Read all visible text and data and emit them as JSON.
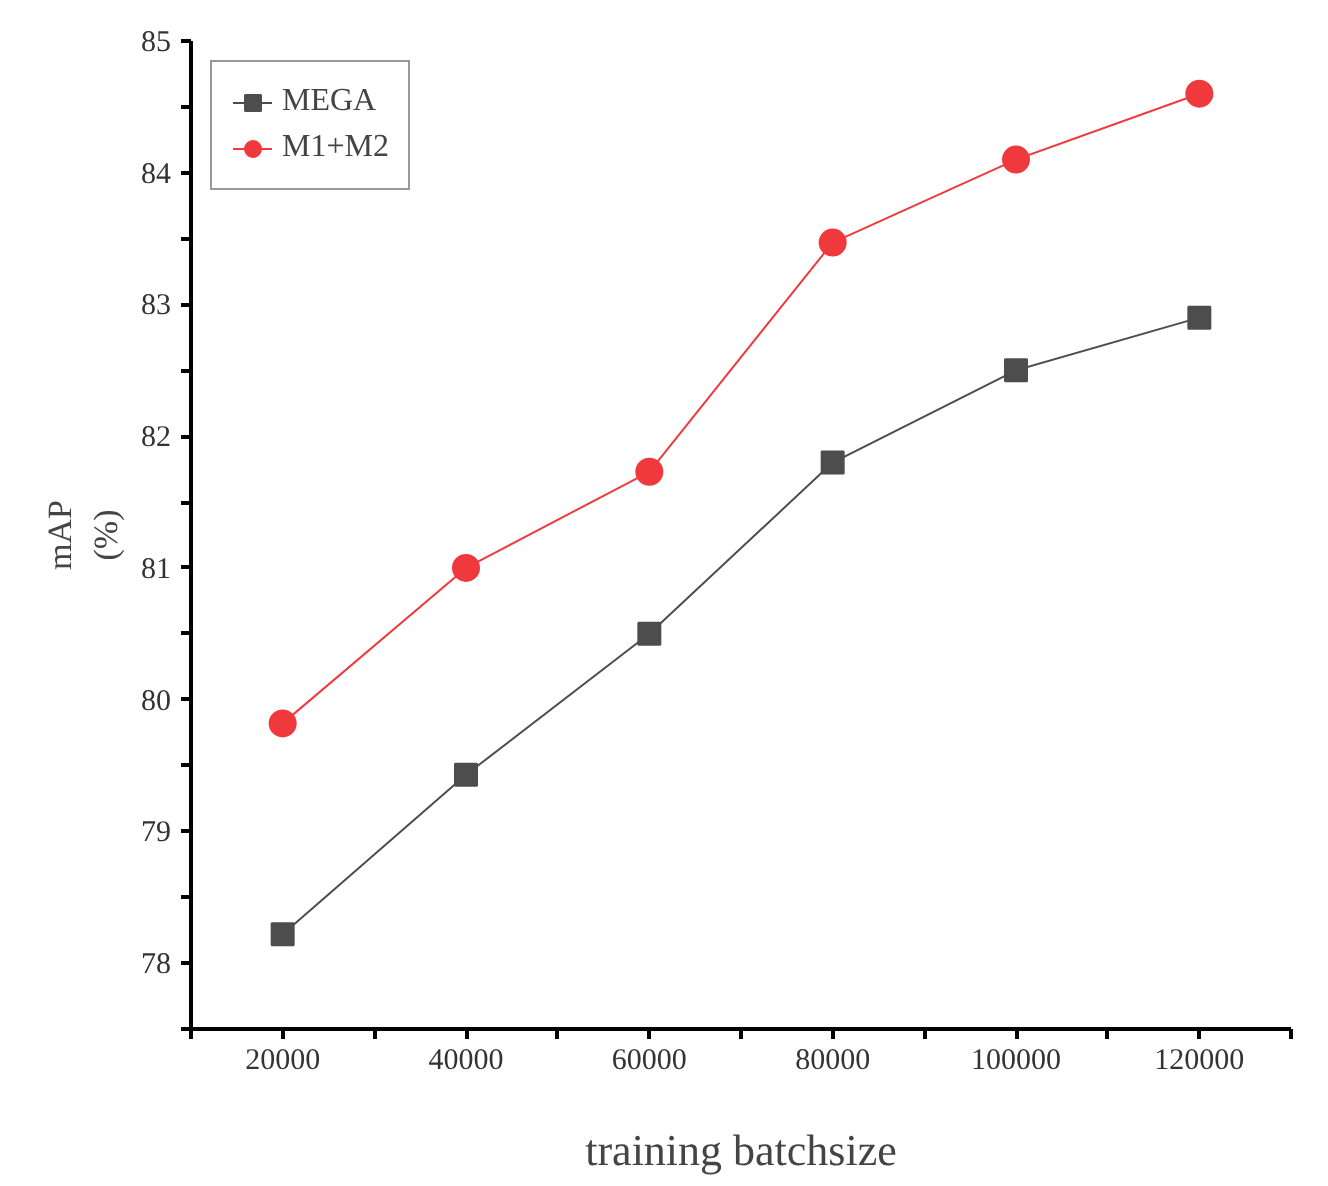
{
  "chart_data": {
    "type": "line",
    "xlabel": "training batchsize",
    "ylabel": "mAP\n(%)",
    "x": [
      20000,
      40000,
      60000,
      80000,
      100000,
      120000
    ],
    "series": [
      {
        "name": "MEGA",
        "color": "#4d4d4d",
        "marker": "square",
        "values": [
          78.22,
          79.43,
          80.5,
          81.8,
          82.5,
          82.9
        ]
      },
      {
        "name": "M1+M2",
        "color": "#f0393c",
        "marker": "circle",
        "values": [
          79.82,
          81.0,
          81.73,
          83.47,
          84.1,
          84.6
        ]
      }
    ],
    "xlim": [
      10000,
      130000
    ],
    "xticks": [
      {
        "value": 10000,
        "label": null
      },
      20000,
      {
        "value": 30000,
        "label": null
      },
      40000,
      {
        "value": 50000,
        "label": null
      },
      60000,
      {
        "value": 70000,
        "label": null
      },
      80000,
      {
        "value": 90000,
        "label": null
      },
      100000,
      {
        "value": 110000,
        "label": null
      },
      120000,
      {
        "value": 130000,
        "label": null
      }
    ],
    "ylim": [
      77.5,
      85
    ],
    "yticks": [
      {
        "value": 77.5,
        "label": null
      },
      78,
      {
        "value": 78.5,
        "label": null
      },
      79,
      {
        "value": 79.5,
        "label": null
      },
      80,
      {
        "value": 80.5,
        "label": null
      },
      81,
      {
        "value": 81.5,
        "label": null
      },
      82,
      {
        "value": 82.5,
        "label": null
      },
      83,
      {
        "value": 83.5,
        "label": null
      },
      84,
      {
        "value": 84.5,
        "label": null
      },
      85
    ],
    "grid": false,
    "legend": "top left",
    "line_style": "solid"
  }
}
